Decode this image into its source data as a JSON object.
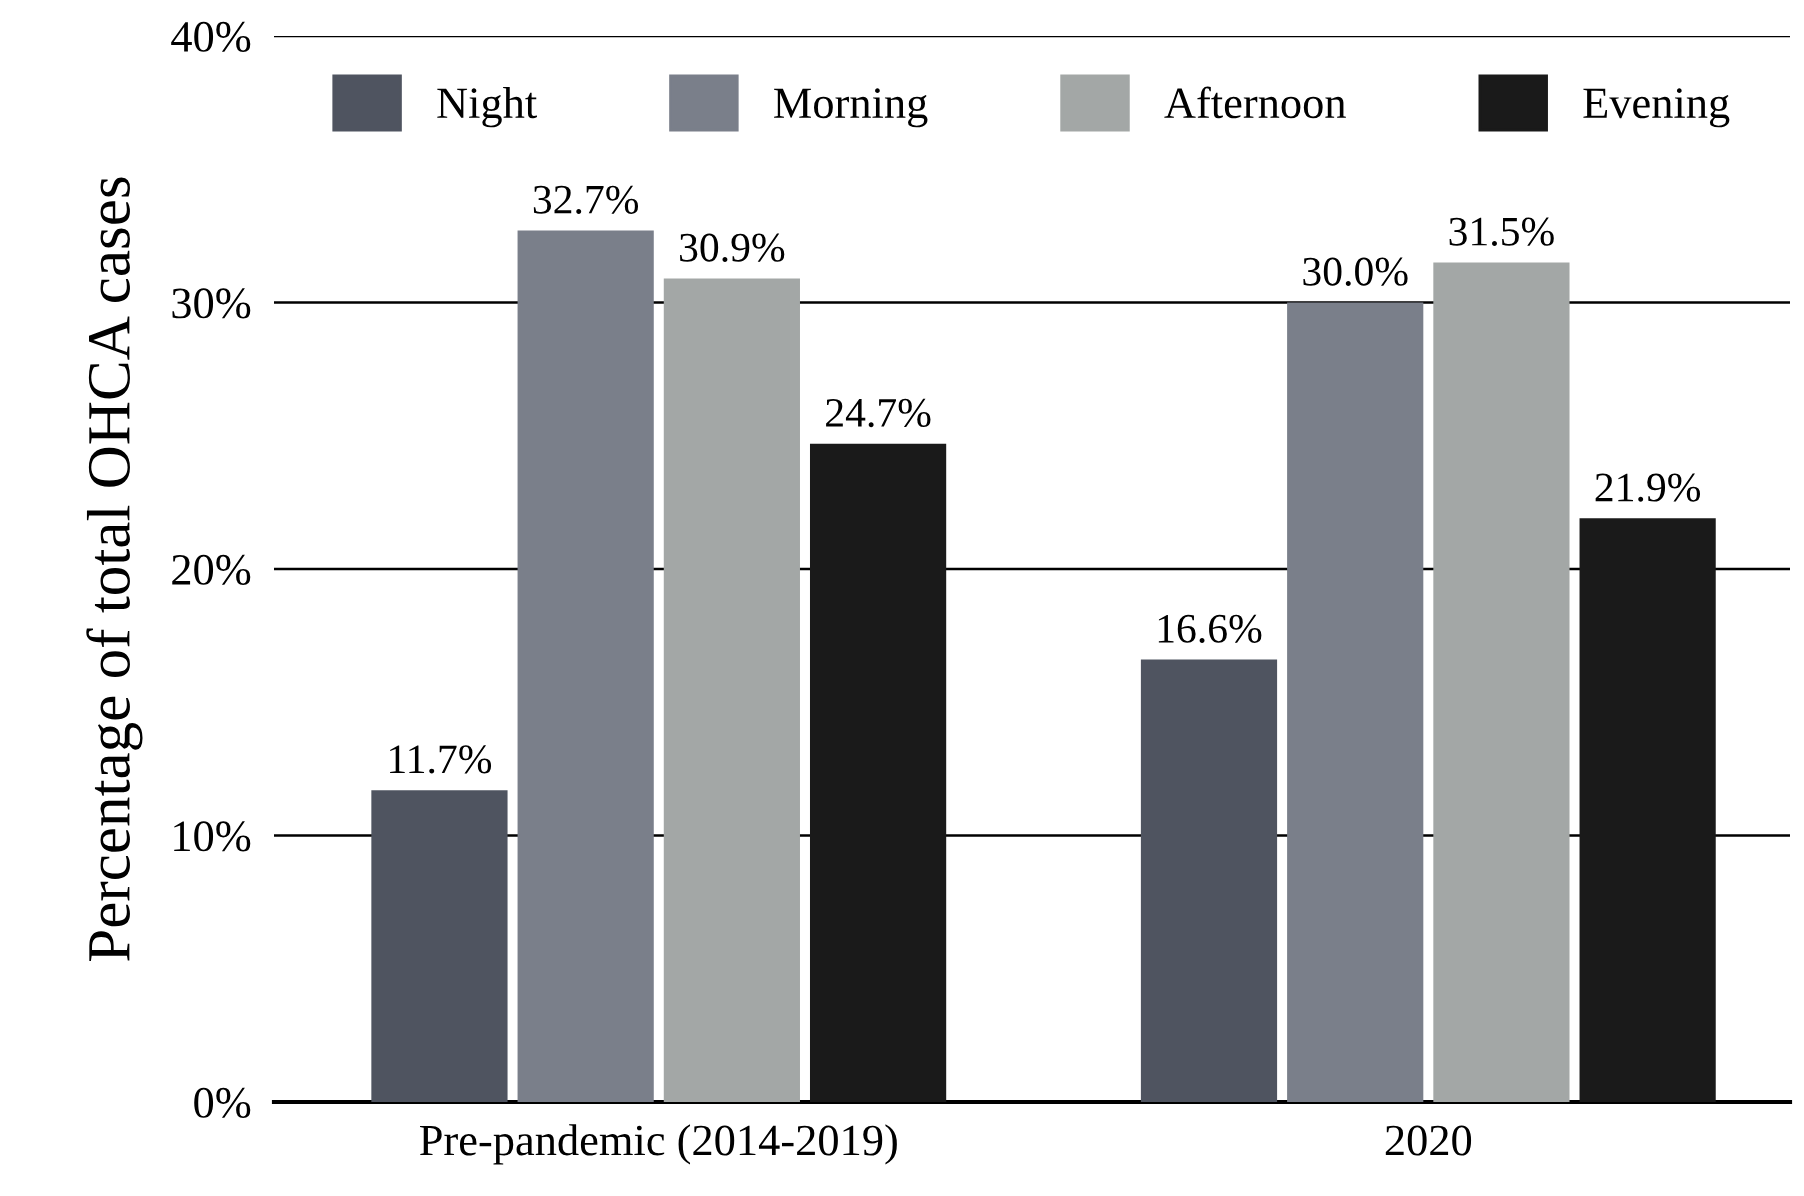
{
  "chart_data": {
    "type": "bar",
    "ylabel": "Percentage of total OHCA cases",
    "categories": [
      "Pre-pandemic (2014-2019)",
      "2020"
    ],
    "series": [
      {
        "name": "Night",
        "color": "#4f5460",
        "values": [
          11.7,
          16.6
        ],
        "value_labels": [
          "11.7%",
          "16.6%"
        ]
      },
      {
        "name": "Morning",
        "color": "#7a7f8a",
        "values": [
          32.7,
          30.0
        ],
        "value_labels": [
          "32.7%",
          "30.0%"
        ]
      },
      {
        "name": "Afternoon",
        "color": "#a3a7a6",
        "values": [
          30.9,
          31.5
        ],
        "value_labels": [
          "30.9%",
          "31.5%"
        ]
      },
      {
        "name": "Evening",
        "color": "#1a1a1a",
        "values": [
          24.7,
          21.9
        ],
        "value_labels": [
          "24.7%",
          "21.9%"
        ]
      }
    ],
    "ylim": [
      0,
      40
    ],
    "yticks": [
      {
        "value": 0,
        "label": "0%"
      },
      {
        "value": 10,
        "label": "10%"
      },
      {
        "value": 20,
        "label": "20%"
      },
      {
        "value": 30,
        "label": "30%"
      },
      {
        "value": 40,
        "label": "40%"
      }
    ],
    "grid": "y",
    "legend": "top"
  }
}
